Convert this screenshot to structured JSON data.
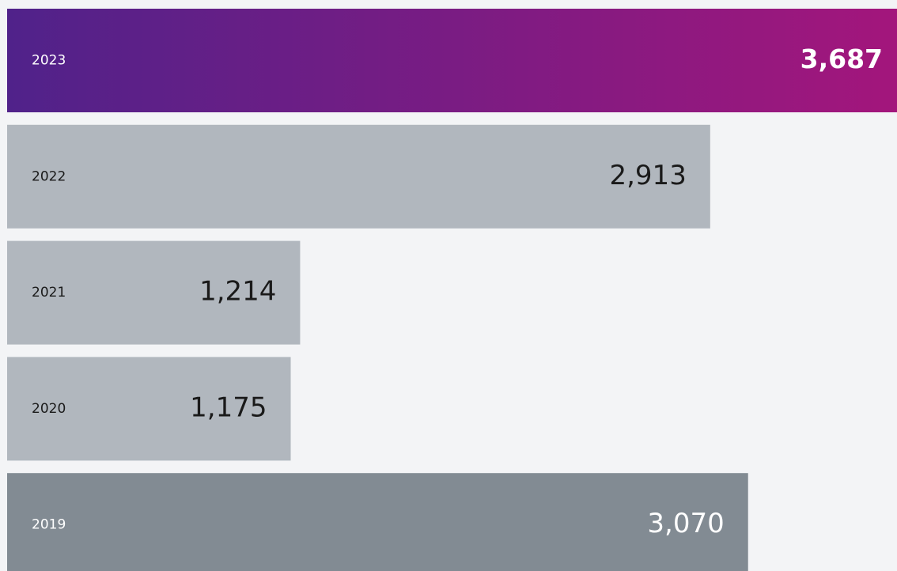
{
  "chart_data": {
    "type": "bar",
    "orientation": "horizontal",
    "categories": [
      "2023",
      "2022",
      "2021",
      "2020",
      "2019"
    ],
    "values": [
      3687,
      2913,
      1214,
      1175,
      3070
    ],
    "value_labels": [
      "3,687",
      "2,913",
      "1,214",
      "1,175",
      "3,070"
    ],
    "colors": [
      {
        "from": "#50228a",
        "to": "#a3167c"
      },
      "#b1b7be",
      "#b1b7be",
      "#b1b7be",
      "#828b93"
    ],
    "label_colors": [
      "#ffffff",
      "#1a1a1a",
      "#1a1a1a",
      "#1a1a1a",
      "#ffffff"
    ],
    "highlight_index": 0,
    "background": "#f3f4f6"
  }
}
